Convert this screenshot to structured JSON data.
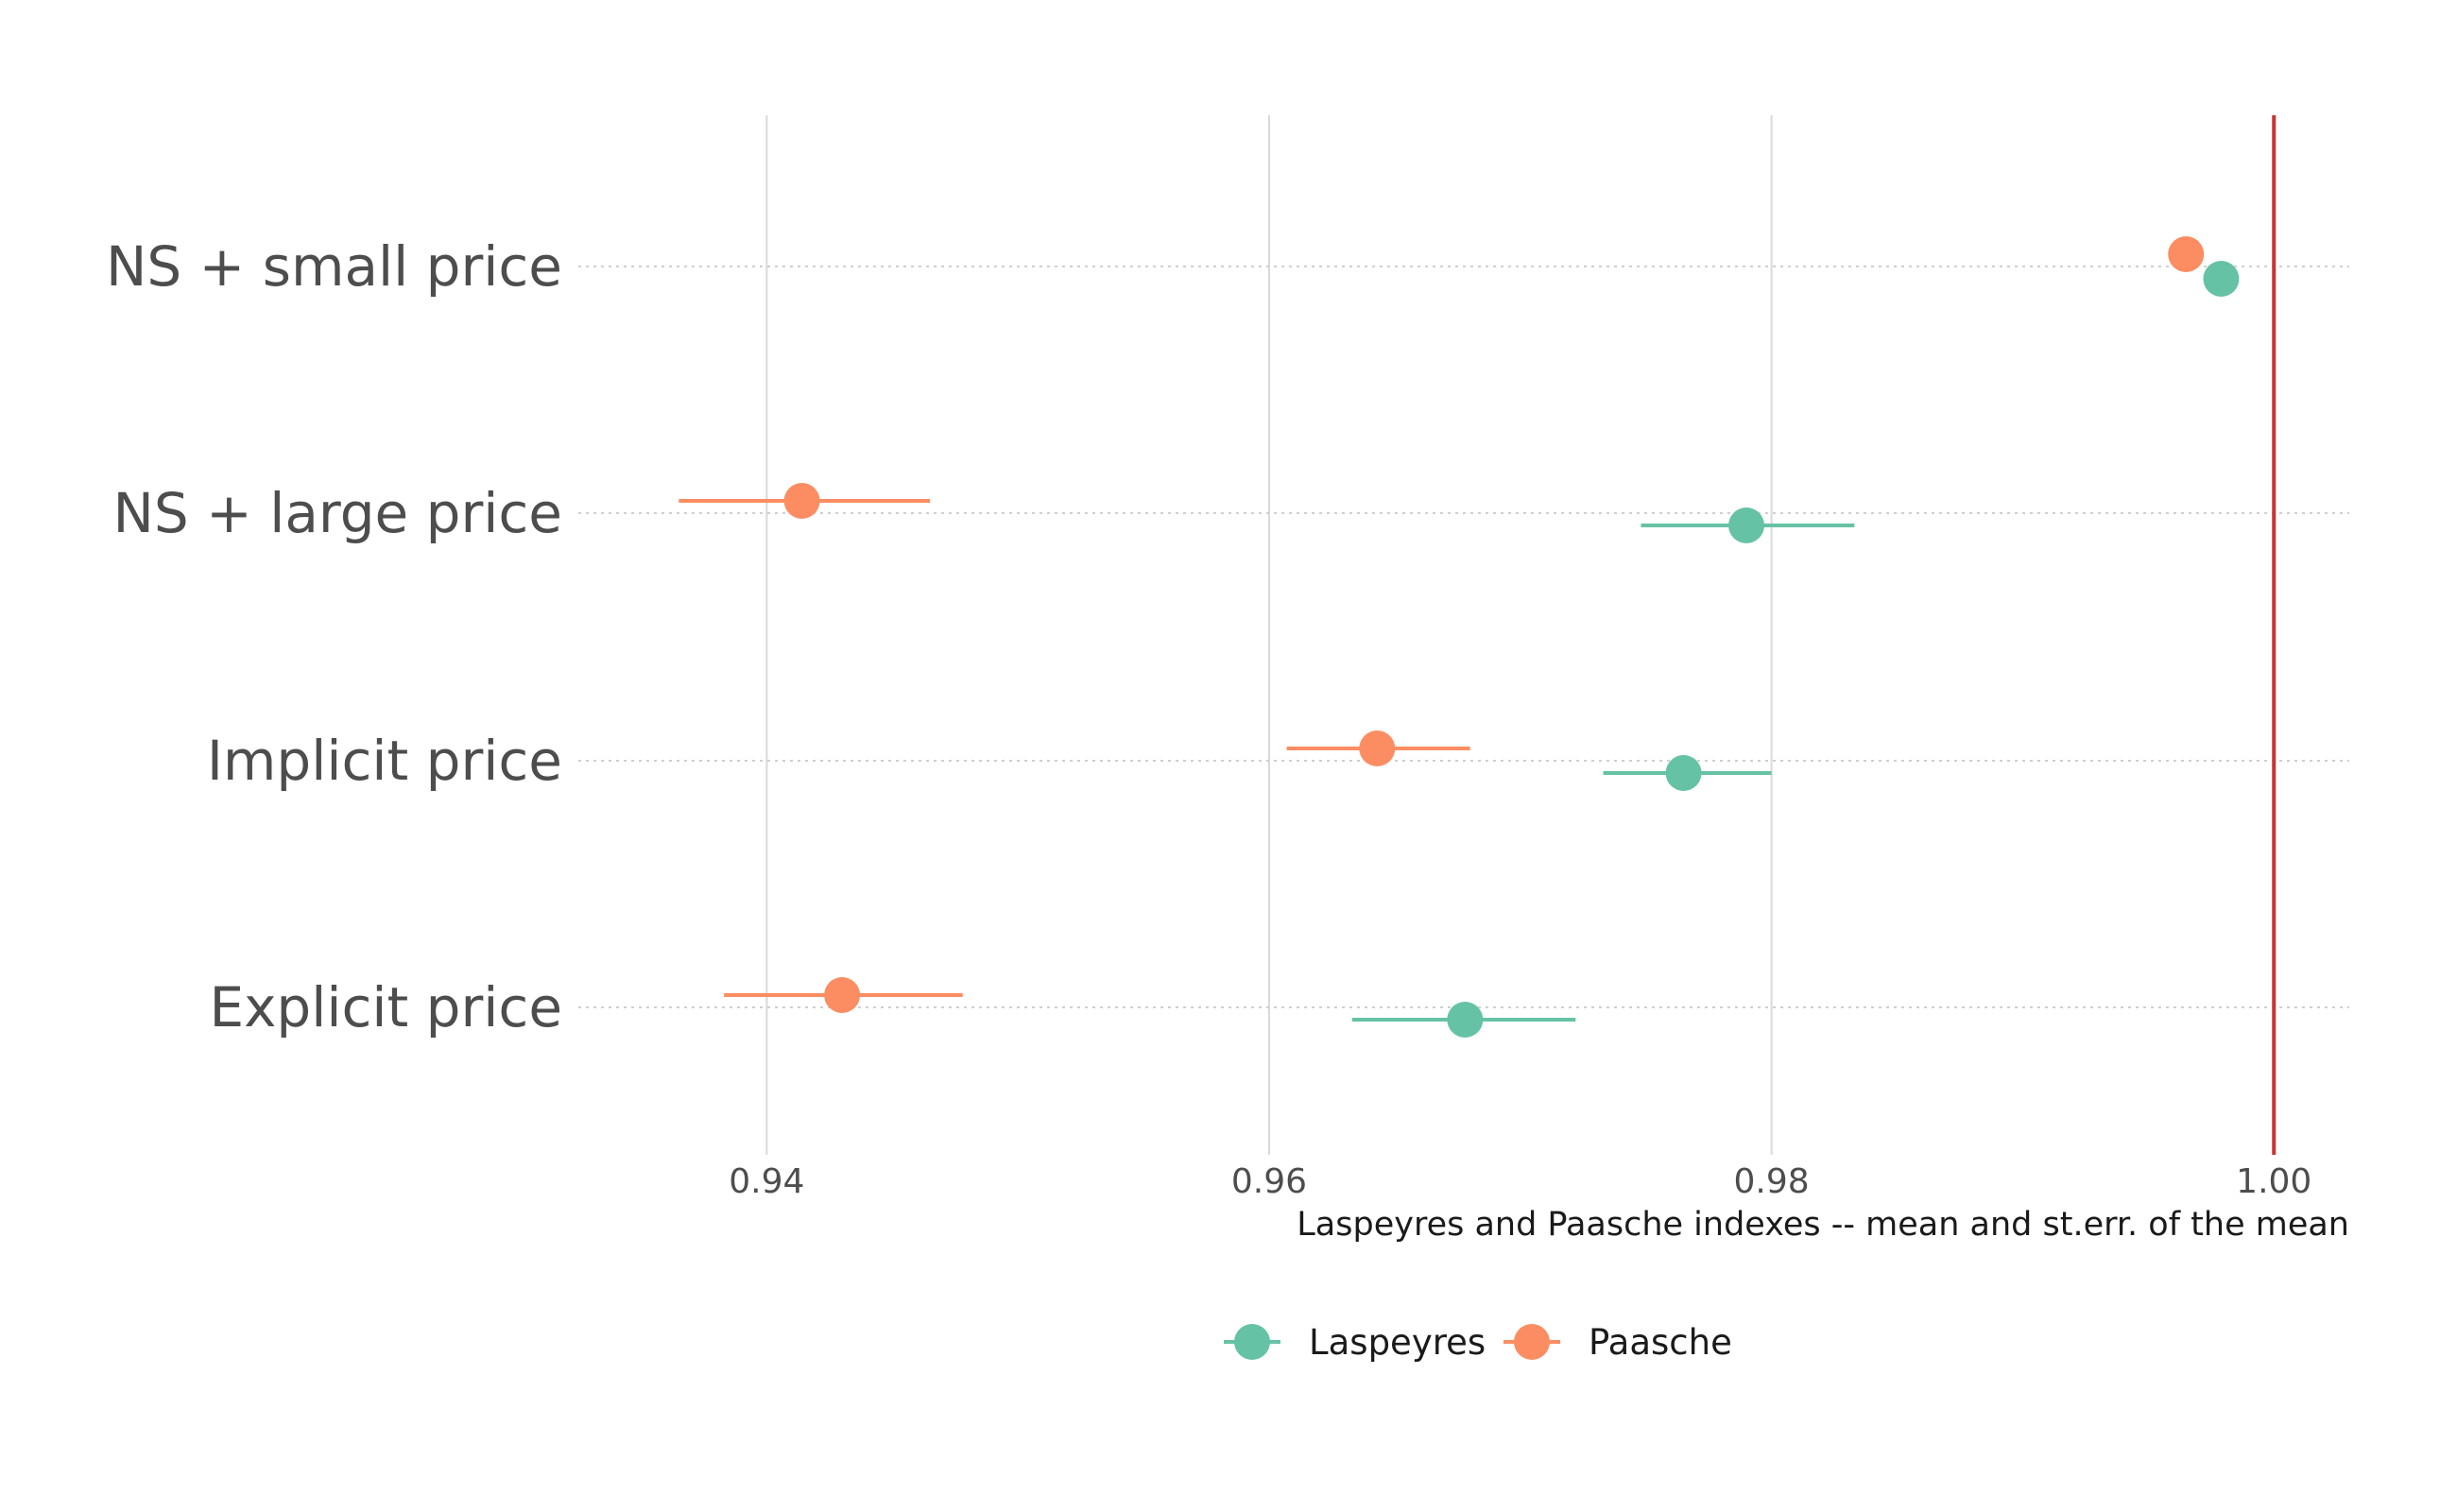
{
  "chart_data": {
    "type": "scatter",
    "title": "",
    "xlabel": "Laspeyres and Paasche indexes -- mean and st.err. of the mean",
    "ylabel": "",
    "categories": [
      "NS + small price",
      "NS + large price",
      "Implicit price",
      "Explicit price"
    ],
    "x_ticks": [
      "0.94",
      "0.96",
      "0.98",
      "1.00"
    ],
    "x_tick_values": [
      0.94,
      0.96,
      0.98,
      1.0
    ],
    "xlim": [
      0.9325,
      1.003
    ],
    "reference_line": {
      "x": 1.0,
      "color": "#cc3333"
    },
    "grid": true,
    "legend_position": "bottom",
    "series": [
      {
        "name": "Laspeyres",
        "color": "#66c2a5",
        "values": [
          0.9979,
          0.979,
          0.9765,
          0.9678
        ],
        "lower": [
          0.9979,
          0.9748,
          0.9733,
          0.9633
        ],
        "upper": [
          0.9979,
          0.9833,
          0.98,
          0.9722
        ]
      },
      {
        "name": "Paasche",
        "color": "#fc8d62",
        "values": [
          0.9965,
          0.9414,
          0.9643,
          0.943
        ],
        "lower": [
          0.9965,
          0.9365,
          0.9607,
          0.9383
        ],
        "upper": [
          0.9965,
          0.9465,
          0.968,
          0.9478
        ]
      }
    ]
  }
}
